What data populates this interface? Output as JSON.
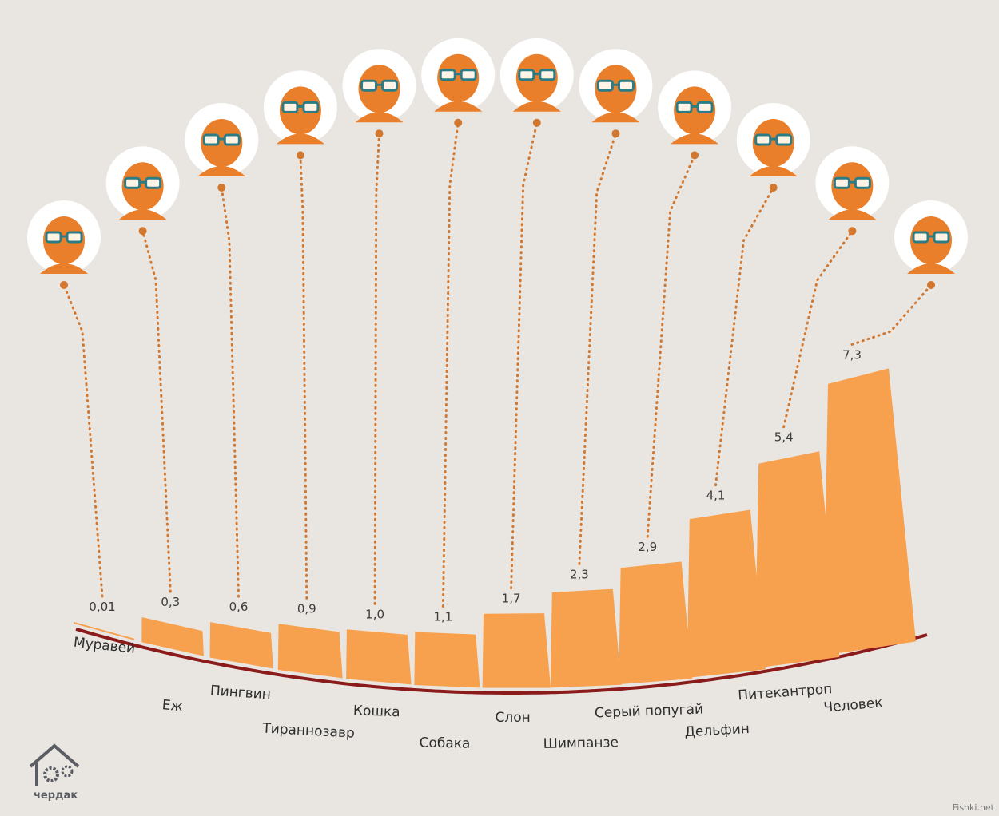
{
  "chart_data": {
    "type": "bar",
    "categories": [
      "Муравей",
      "Еж",
      "Пингвин",
      "Тираннозавр",
      "Кошка",
      "Собака",
      "Слон",
      "Шимпанзе",
      "Серый попугай",
      "Дельфин",
      "Питекантроп",
      "Человек"
    ],
    "values": [
      0.01,
      0.3,
      0.6,
      0.9,
      1.0,
      1.1,
      1.7,
      2.3,
      2.9,
      4.1,
      5.4,
      7.3
    ],
    "value_labels": [
      "0,01",
      "0,3",
      "0,6",
      "0,9",
      "1,0",
      "1,1",
      "1,7",
      "2,3",
      "2,9",
      "4,1",
      "5,4",
      "7,3"
    ],
    "icons": [
      "ant-icon",
      "hedgehog-icon",
      "penguin-icon",
      "tyrannosaurus-icon",
      "cat-icon",
      "dog-icon",
      "elephant-icon",
      "chimpanzee-icon",
      "parrot-icon",
      "dolphin-icon",
      "pithecanthropus-icon",
      "human-icon"
    ],
    "title": "",
    "xlabel": "",
    "ylabel": "",
    "ylim": [
      0,
      7.3
    ],
    "grid": false,
    "legend": "none",
    "colors": {
      "bar": "#f7a04e",
      "baseline": "#8b1a1a",
      "connector": "#d2772f",
      "icon_fill": "#ea7f2b",
      "glasses": "#2b7c85",
      "circle": "#ffffff"
    }
  },
  "logo": {
    "text": "чердак"
  },
  "watermark": "Fishki.net"
}
